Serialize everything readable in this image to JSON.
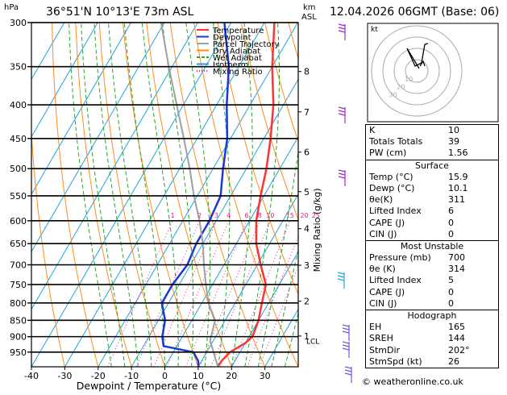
{
  "header": {
    "location": "36°51'N  10°13'E  73m  ASL",
    "datetime": "12.04.2026  06GMT  (Base: 06)",
    "pressure_unit": "hPa",
    "km_unit": "km",
    "asl_unit": "ASL"
  },
  "legend": [
    {
      "label": "Temperature",
      "color": "#ff3333",
      "style": "solid"
    },
    {
      "label": "Dewpoint",
      "color": "#1a3ad6",
      "style": "solid"
    },
    {
      "label": "Parcel Trajectory",
      "color": "#a0a0a0",
      "style": "solid"
    },
    {
      "label": "Dry Adiabat",
      "color": "#ff8c1a",
      "style": "solid"
    },
    {
      "label": "Wet Adiabat",
      "color": "#2aa52a",
      "style": "dash"
    },
    {
      "label": "Isotherm",
      "color": "#1fa3e0",
      "style": "solid"
    },
    {
      "label": "Mixing Ratio",
      "color": "#e0208c",
      "style": "dot"
    }
  ],
  "hodograph": {
    "title": "kt",
    "ring_labels": [
      "10",
      "20",
      "30"
    ]
  },
  "indices": [
    {
      "label": "K",
      "value": "10"
    },
    {
      "label": "Totals Totals",
      "value": "39"
    },
    {
      "label": "PW (cm)",
      "value": "1.56"
    }
  ],
  "surface": {
    "title": "Surface",
    "rows": [
      {
        "label": "Temp (°C)",
        "value": "15.9"
      },
      {
        "label": "Dewp (°C)",
        "value": "10.1"
      },
      {
        "label": "θe(K)",
        "value": "311"
      },
      {
        "label": "Lifted Index",
        "value": "6"
      },
      {
        "label": "CAPE (J)",
        "value": "0"
      },
      {
        "label": "CIN (J)",
        "value": "0"
      }
    ]
  },
  "most_unstable": {
    "title": "Most Unstable",
    "rows": [
      {
        "label": "Pressure (mb)",
        "value": "700"
      },
      {
        "label": "θe (K)",
        "value": "314"
      },
      {
        "label": "Lifted Index",
        "value": "5"
      },
      {
        "label": "CAPE (J)",
        "value": "0"
      },
      {
        "label": "CIN (J)",
        "value": "0"
      }
    ]
  },
  "hodograph_table": {
    "title": "Hodograph",
    "rows": [
      {
        "label": "EH",
        "value": "165"
      },
      {
        "label": "SREH",
        "value": "144"
      },
      {
        "label": "StmDir",
        "value": "202°"
      },
      {
        "label": "StmSpd (kt)",
        "value": "26"
      }
    ]
  },
  "footer": "© weatheronline.co.uk",
  "chart_data": {
    "type": "line",
    "title": "36°51'N  10°13'E  73m  ASL",
    "xlabel": "Dewpoint / Temperature (°C)",
    "ylabel": "hPa",
    "y2label": "Mixing Ratio (g/kg)",
    "xlim": [
      -40,
      40
    ],
    "ylim": [
      1000,
      300
    ],
    "x_ticks": [
      "-40",
      "-30",
      "-20",
      "-10",
      "0",
      "10",
      "20",
      "30"
    ],
    "pressure_levels": [
      "300",
      "350",
      "400",
      "450",
      "500",
      "550",
      "600",
      "650",
      "700",
      "750",
      "800",
      "850",
      "900",
      "950"
    ],
    "km_levels": [
      {
        "label": "8",
        "p": 356
      },
      {
        "label": "7",
        "p": 410
      },
      {
        "label": "6",
        "p": 472
      },
      {
        "label": "5",
        "p": 542
      },
      {
        "label": "4",
        "p": 617
      },
      {
        "label": "3",
        "p": 701
      },
      {
        "label": "2",
        "p": 795
      },
      {
        "label": "1",
        "p": 898
      }
    ],
    "lcl_label": "LCL",
    "lcl_p": 912,
    "mixing_ratio_labels": [
      "1",
      "2",
      "3",
      "4",
      "6",
      "8",
      "10",
      "15",
      "20",
      "25"
    ],
    "series": [
      {
        "name": "Temperature",
        "points": [
          [
            15.9,
            1000
          ],
          [
            16,
            980
          ],
          [
            17,
            950
          ],
          [
            20,
            920
          ],
          [
            21,
            900
          ],
          [
            20,
            850
          ],
          [
            18,
            800
          ],
          [
            16,
            750
          ],
          [
            11,
            700
          ],
          [
            6,
            650
          ],
          [
            2,
            600
          ],
          [
            -1,
            550
          ],
          [
            -4,
            500
          ],
          [
            -8,
            450
          ],
          [
            -13,
            400
          ],
          [
            -20,
            350
          ],
          [
            -27,
            300
          ]
        ]
      },
      {
        "name": "Dewpoint",
        "points": [
          [
            10.1,
            1000
          ],
          [
            9,
            980
          ],
          [
            6,
            950
          ],
          [
            -4,
            930
          ],
          [
            -6,
            900
          ],
          [
            -8,
            850
          ],
          [
            -12,
            800
          ],
          [
            -12,
            750
          ],
          [
            -11,
            700
          ],
          [
            -12,
            650
          ],
          [
            -12,
            600
          ],
          [
            -13,
            550
          ],
          [
            -17,
            500
          ],
          [
            -21,
            450
          ],
          [
            -27,
            400
          ],
          [
            -33,
            350
          ],
          [
            -42,
            300
          ]
        ]
      },
      {
        "name": "Parcel Trajectory",
        "points": [
          [
            15.9,
            1000
          ],
          [
            9,
            912
          ],
          [
            7,
            850
          ],
          [
            2,
            800
          ],
          [
            -2,
            750
          ],
          [
            -6,
            700
          ],
          [
            -10,
            650
          ],
          [
            -15,
            600
          ],
          [
            -21,
            550
          ],
          [
            -27,
            500
          ],
          [
            -34,
            450
          ],
          [
            -42,
            400
          ],
          [
            -51,
            350
          ],
          [
            -61,
            300
          ]
        ]
      }
    ]
  }
}
